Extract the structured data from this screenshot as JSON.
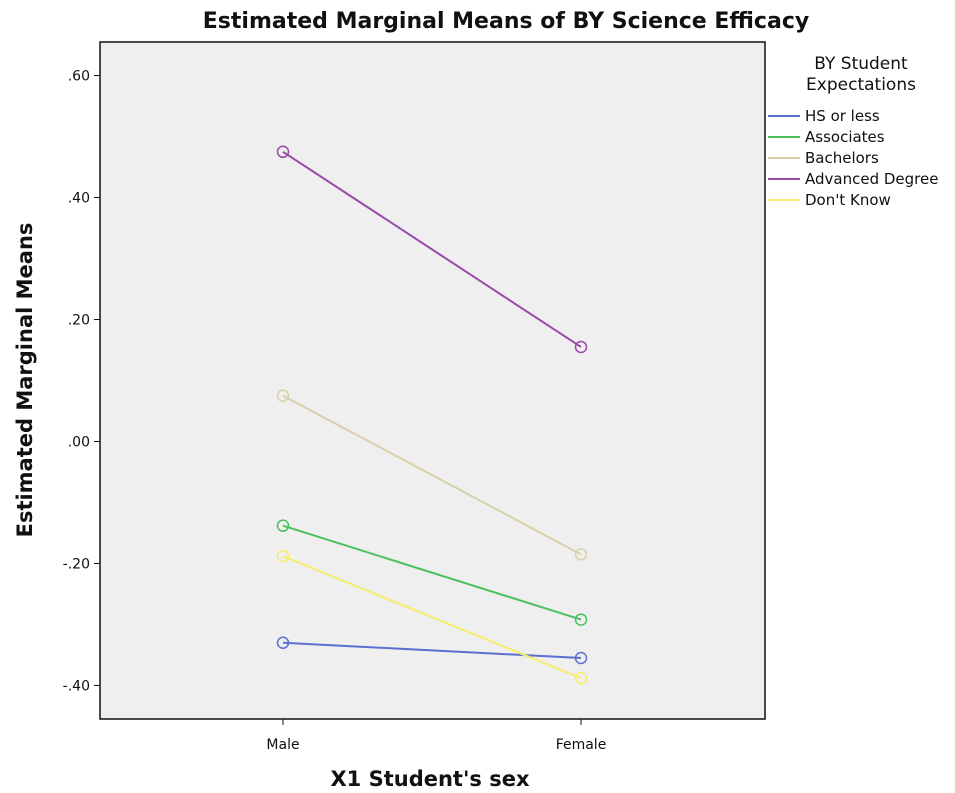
{
  "chart_data": {
    "type": "line",
    "title": "Estimated Marginal Means of BY Science Efficacy",
    "xlabel": "X1 Student's sex",
    "ylabel": "Estimated Marginal Means",
    "categories": [
      "Male",
      "Female"
    ],
    "ylim": [
      -0.455,
      0.655
    ],
    "yticks": [
      0.6,
      0.4,
      0.2,
      0.0,
      -0.2,
      -0.4
    ],
    "ytick_labels": [
      ".60",
      ".40",
      ".20",
      ".00",
      "-.20",
      "-.40"
    ],
    "legend_title": "BY Student Expectations",
    "legend_title_lines": [
      "BY Student",
      "Expectations"
    ],
    "legend_position": "right",
    "grid": false,
    "plot_background": "#efefef",
    "series": [
      {
        "name": "HS or less",
        "color": "#5b6fd0",
        "values": [
          -0.33,
          -0.355
        ]
      },
      {
        "name": "Associates",
        "color": "#4bc05c",
        "values": [
          -0.138,
          -0.292
        ]
      },
      {
        "name": "Bachelors",
        "color": "#d8d0aa",
        "values": [
          0.075,
          -0.185
        ]
      },
      {
        "name": "Advanced Degree",
        "color": "#9a4aa8",
        "values": [
          0.475,
          0.155
        ]
      },
      {
        "name": "Don't Know",
        "color": "#f4ee6a",
        "values": [
          -0.188,
          -0.388
        ]
      }
    ]
  }
}
